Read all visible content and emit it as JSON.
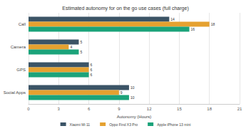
{
  "chart_data": {
    "type": "bar",
    "title": "Estimated autonomy for on the go use cases (full charge)",
    "orientation": "horizontal",
    "x_label": "Autonomy (Hours)",
    "categories": [
      "Call",
      "Camera",
      "GPS",
      "Social Apps"
    ],
    "series": [
      {
        "name": "Xiaomi Mi 11",
        "color": "#3b5466",
        "values": [
          14,
          5,
          6,
          10
        ]
      },
      {
        "name": "Oppo Find X3 Pro",
        "color": "#e5a130",
        "values": [
          18,
          4,
          6,
          9
        ]
      },
      {
        "name": "Apple iPhone 13 mini",
        "color": "#1ba37a",
        "values": [
          16,
          5,
          6,
          10
        ]
      }
    ],
    "xlim": [
      0,
      21
    ],
    "xticks": [
      0,
      3,
      6,
      9,
      12,
      15,
      18,
      21
    ],
    "grid": true,
    "legend": "bottom",
    "data_labels": true
  }
}
